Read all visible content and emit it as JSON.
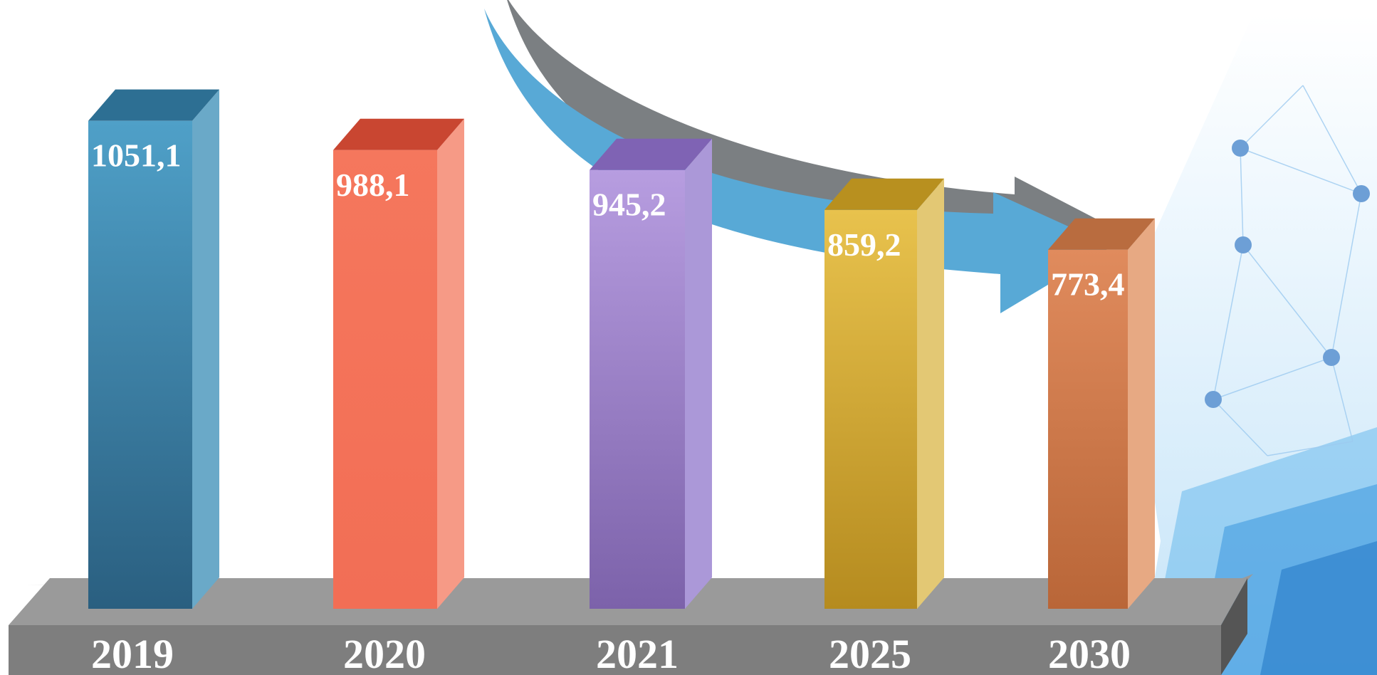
{
  "chart_data": {
    "type": "bar",
    "categories": [
      "2019",
      "2020",
      "2021",
      "2025",
      "2030"
    ],
    "values": [
      1051.1,
      988.1,
      945.2,
      859.2,
      773.4
    ],
    "value_labels": [
      "1051,1",
      "988,1",
      "945,2",
      "859,2",
      "773,4"
    ],
    "ylim": [
      0,
      1100
    ],
    "style": "3d-bar",
    "grid": false,
    "legend": "none",
    "trend": "decreasing",
    "colors": {
      "bars": [
        {
          "front_top": "#4fa0c8",
          "front_bottom": "#2a5f80",
          "side": "#6aa9c8",
          "top": "#2d6f93"
        },
        {
          "front_top": "#f5775d",
          "front_bottom": "#f26e55",
          "side": "#f69a86",
          "top": "#c94631"
        },
        {
          "front_top": "#b79de0",
          "front_bottom": "#7c62aa",
          "side": "#ab98d8",
          "top": "#7f63b4"
        },
        {
          "front_top": "#e8c24d",
          "front_bottom": "#b58b1f",
          "side": "#e3c874",
          "top": "#b8901f"
        },
        {
          "front_top": "#e08b5d",
          "front_bottom": "#b96638",
          "side": "#e7a983",
          "top": "#b96c3f"
        }
      ],
      "platform_front": "#7e7e7e",
      "platform_top": "#9a9a9a",
      "platform_side": "#555555",
      "arrow": "#58a9d6",
      "arrow_shadow": "#7b7f82",
      "network_bg": "#bfe1f7",
      "network_node": "#6d9fd6"
    }
  }
}
